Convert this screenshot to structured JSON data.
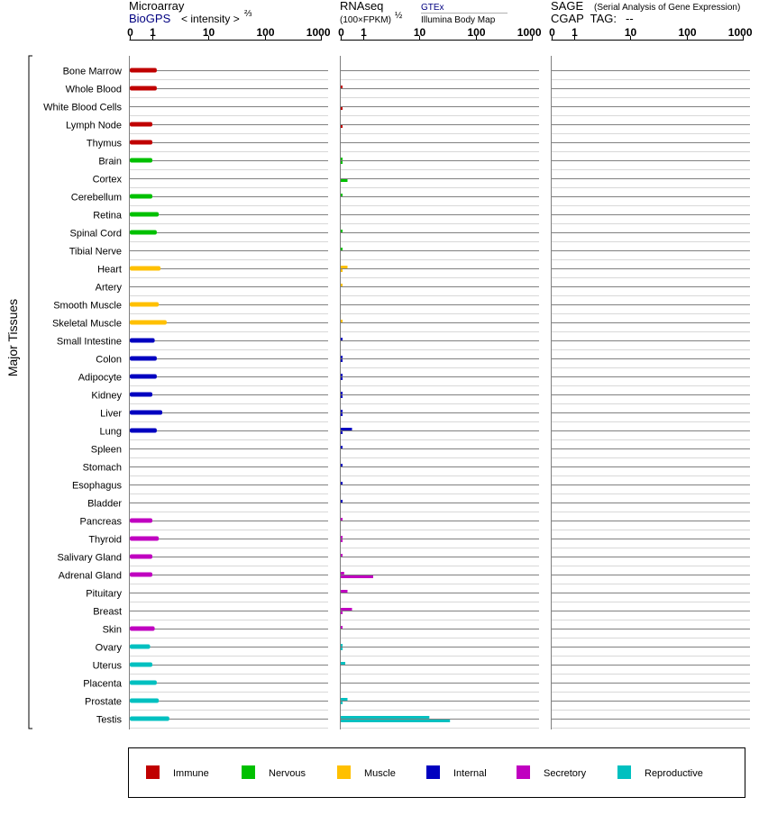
{
  "panels": {
    "microarray": {
      "title": "Microarray",
      "source": "BioGPS",
      "intensity_label": "< intensity >",
      "intensity_exp": "⅔",
      "ticks": [
        "0",
        "1",
        "10",
        "100",
        "1000"
      ]
    },
    "rnaseq": {
      "title": "RNAseq",
      "unit": "(100×FPKM)",
      "unit_exp": "½",
      "gtex_label": "GTEx",
      "illumina_label": "Illumina Body Map",
      "ticks": [
        "0",
        "1",
        "10",
        "100",
        "1000"
      ]
    },
    "sage": {
      "title": "SAGE",
      "subtitle": "(Serial Analysis of Gene Expression)",
      "tag_label": "CGAP  TAG:",
      "tag_value": "--",
      "ticks": [
        "0",
        "1",
        "10",
        "100",
        "1000"
      ]
    }
  },
  "side_label": "Major Tissues",
  "colors": {
    "Immune": "#c00000",
    "Nervous": "#00c000",
    "Muscle": "#ffc000",
    "Internal": "#0000c0",
    "Secretory": "#c000c0",
    "Reproductive": "#00c0c0"
  },
  "legend": [
    "Immune",
    "Nervous",
    "Muscle",
    "Internal",
    "Secretory",
    "Reproductive"
  ],
  "chart_data": {
    "type": "bar",
    "x_scale": "expression, tick labels 0 1 10 100 1000",
    "categories": [
      "Bone Marrow",
      "Whole Blood",
      "White Blood Cells",
      "Lymph Node",
      "Thymus",
      "Brain",
      "Cortex",
      "Cerebellum",
      "Retina",
      "Spinal Cord",
      "Tibial Nerve",
      "Heart",
      "Artery",
      "Smooth Muscle",
      "Skeletal Muscle",
      "Small Intestine",
      "Colon",
      "Adipocyte",
      "Kidney",
      "Liver",
      "Lung",
      "Spleen",
      "Stomach",
      "Esophagus",
      "Bladder",
      "Pancreas",
      "Thyroid",
      "Salivary Gland",
      "Adrenal Gland",
      "Pituitary",
      "Breast",
      "Skin",
      "Ovary",
      "Uterus",
      "Placenta",
      "Prostate",
      "Testis"
    ],
    "groups": [
      "Immune",
      "Immune",
      "Immune",
      "Immune",
      "Immune",
      "Nervous",
      "Nervous",
      "Nervous",
      "Nervous",
      "Nervous",
      "Nervous",
      "Muscle",
      "Muscle",
      "Muscle",
      "Muscle",
      "Internal",
      "Internal",
      "Internal",
      "Internal",
      "Internal",
      "Internal",
      "Internal",
      "Internal",
      "Internal",
      "Internal",
      "Secretory",
      "Secretory",
      "Secretory",
      "Secretory",
      "Secretory",
      "Secretory",
      "Secretory",
      "Reproductive",
      "Reproductive",
      "Reproductive",
      "Reproductive",
      "Reproductive"
    ],
    "series": [
      {
        "name": "BioGPS",
        "values": [
          1.2,
          1.2,
          null,
          1.0,
          1.0,
          1.0,
          null,
          1.0,
          1.3,
          1.2,
          null,
          1.4,
          null,
          1.3,
          1.8,
          1.1,
          1.2,
          1.2,
          1.0,
          1.5,
          1.2,
          null,
          null,
          null,
          null,
          1.0,
          1.3,
          1.0,
          1.0,
          null,
          null,
          1.1,
          0.9,
          1.0,
          1.2,
          1.3,
          2.0
        ]
      },
      {
        "name": "GTEx",
        "values": [
          null,
          0.05,
          null,
          null,
          null,
          0.05,
          null,
          0.05,
          null,
          0.05,
          0.05,
          0.3,
          0.05,
          null,
          0.05,
          0.05,
          0.05,
          0.05,
          0.05,
          0.05,
          0.5,
          0.05,
          0.05,
          0.05,
          0.05,
          0.05,
          0.05,
          0.05,
          0.15,
          0.3,
          0.5,
          0.05,
          0.05,
          0.2,
          null,
          0.3,
          15
        ]
      },
      {
        "name": "Illumina Body Map",
        "values": [
          null,
          null,
          0.05,
          0.05,
          null,
          0.05,
          0.3,
          null,
          null,
          null,
          null,
          0.05,
          null,
          null,
          null,
          null,
          0.05,
          0.05,
          0.05,
          0.05,
          0.05,
          null,
          null,
          null,
          null,
          null,
          0.05,
          null,
          1.5,
          null,
          0.05,
          null,
          0.05,
          null,
          null,
          0.05,
          35
        ]
      }
    ]
  }
}
